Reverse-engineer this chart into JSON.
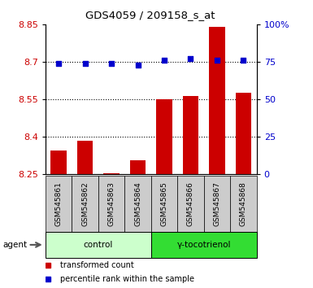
{
  "title": "GDS4059 / 209158_s_at",
  "samples": [
    "GSM545861",
    "GSM545862",
    "GSM545863",
    "GSM545864",
    "GSM545865",
    "GSM545866",
    "GSM545867",
    "GSM545868"
  ],
  "transformed_counts": [
    8.345,
    8.385,
    8.255,
    8.305,
    8.55,
    8.565,
    8.84,
    8.575
  ],
  "percentile_ranks": [
    74,
    74,
    74,
    73,
    76,
    77,
    76,
    76
  ],
  "ylim_left": [
    8.25,
    8.85
  ],
  "ylim_right": [
    0,
    100
  ],
  "yticks_left": [
    8.25,
    8.4,
    8.55,
    8.7,
    8.85
  ],
  "yticks_right": [
    0,
    25,
    50,
    75,
    100
  ],
  "ytick_labels_right": [
    "0",
    "25",
    "50",
    "75",
    "100%"
  ],
  "bar_color": "#cc0000",
  "dot_color": "#0000cc",
  "bar_base": 8.25,
  "groups": [
    {
      "label": "control",
      "indices": [
        0,
        1,
        2,
        3
      ],
      "color": "#ccffcc"
    },
    {
      "label": "γ-tocotrienol",
      "indices": [
        4,
        5,
        6,
        7
      ],
      "color": "#33dd33"
    }
  ],
  "agent_label": "agent",
  "legend_items": [
    {
      "label": "transformed count",
      "color": "#cc0000"
    },
    {
      "label": "percentile rank within the sample",
      "color": "#0000cc"
    }
  ],
  "tick_label_color_left": "#cc0000",
  "tick_label_color_right": "#0000cc",
  "xticklabel_bg": "#cccccc",
  "grid_yticks": [
    8.4,
    8.55,
    8.7
  ]
}
